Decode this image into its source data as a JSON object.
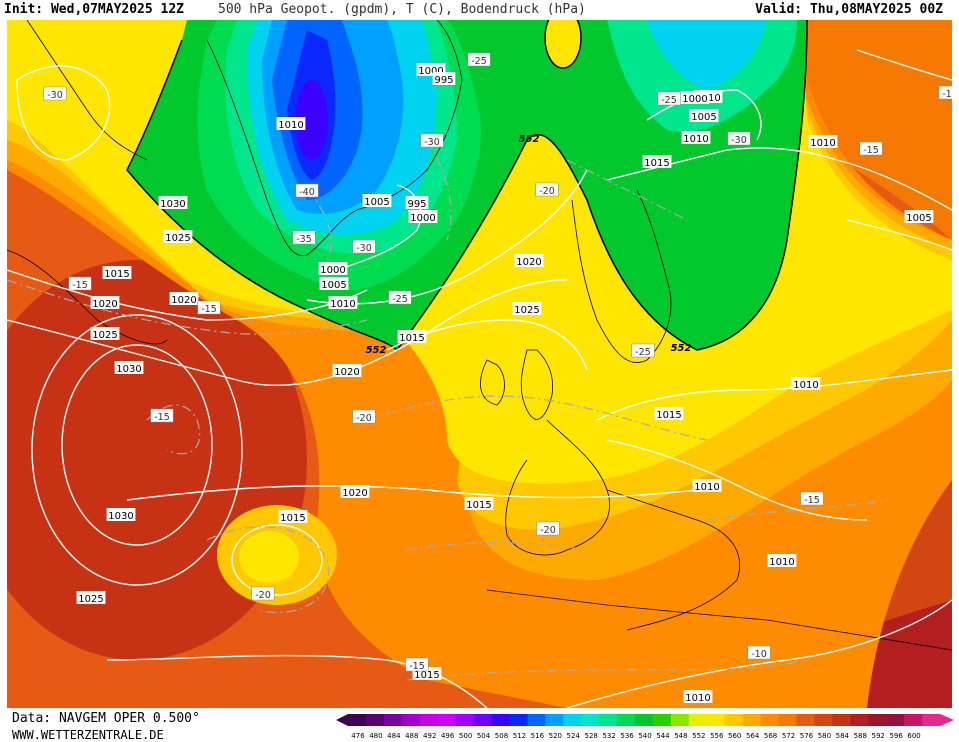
{
  "header": {
    "init": "Init: Wed,07MAY2025 12Z",
    "title": "500 hPa Geopot. (gpdm), T (C), Bodendruck (hPa)",
    "valid": "Valid: Thu,08MAY2025 00Z"
  },
  "footer": {
    "data_source": "Data: NAVGEM OPER 0.500°",
    "website": "WWW.WETTERZENTRALE.DE"
  },
  "colorbar": {
    "values": [
      "476",
      "480",
      "484",
      "488",
      "492",
      "496",
      "500",
      "504",
      "508",
      "512",
      "516",
      "520",
      "524",
      "528",
      "532",
      "536",
      "540",
      "544",
      "548",
      "552",
      "556",
      "560",
      "564",
      "568",
      "572",
      "576",
      "580",
      "584",
      "588",
      "592",
      "596",
      "600"
    ],
    "colors": [
      "#3c0050",
      "#5a0078",
      "#7a00a0",
      "#a000c8",
      "#c800e6",
      "#d200ff",
      "#a000ff",
      "#6e00ff",
      "#3c00ff",
      "#0a28ff",
      "#0064ff",
      "#00a0ff",
      "#00d2f0",
      "#00e6c8",
      "#00e68c",
      "#00dc50",
      "#00c82d",
      "#28d200",
      "#8ce600",
      "#e6f000",
      "#ffe600",
      "#ffc800",
      "#ffaa00",
      "#ff8c00",
      "#f57800",
      "#e65a14",
      "#d24614",
      "#c83214",
      "#b41e1e",
      "#a01428",
      "#96143c",
      "#c81464",
      "#e6288c"
    ]
  },
  "map": {
    "pressure_labels": [
      {
        "v": "1010"
      },
      {
        "v": "1000"
      },
      {
        "v": "995"
      },
      {
        "v": "1010"
      },
      {
        "v": "1000"
      },
      {
        "v": "1005"
      },
      {
        "v": "1010"
      },
      {
        "v": "1030"
      },
      {
        "v": "1025"
      },
      {
        "v": "1015"
      },
      {
        "v": "1005"
      },
      {
        "v": "1000"
      },
      {
        "v": "995"
      },
      {
        "v": "1015"
      },
      {
        "v": "1010"
      },
      {
        "v": "1005"
      },
      {
        "v": "1020"
      },
      {
        "v": "1020"
      },
      {
        "v": "1000"
      },
      {
        "v": "1005"
      },
      {
        "v": "1010"
      },
      {
        "v": "1025"
      },
      {
        "v": "1015"
      },
      {
        "v": "1020"
      },
      {
        "v": "1025"
      },
      {
        "v": "1030"
      },
      {
        "v": "1020"
      },
      {
        "v": "1010"
      },
      {
        "v": "1015"
      },
      {
        "v": "1020"
      },
      {
        "v": "1010"
      },
      {
        "v": "1015"
      },
      {
        "v": "1030"
      },
      {
        "v": "1015"
      },
      {
        "v": "1025"
      },
      {
        "v": "1010"
      },
      {
        "v": "1015"
      },
      {
        "v": "1010"
      }
    ],
    "temperature_labels": [
      {
        "v": "-30"
      },
      {
        "v": "-25"
      },
      {
        "v": "-25"
      },
      {
        "v": "-30"
      },
      {
        "v": "-30"
      },
      {
        "v": "-15"
      },
      {
        "v": "-1"
      },
      {
        "v": "-40"
      },
      {
        "v": "-35"
      },
      {
        "v": "-30"
      },
      {
        "v": "-20"
      },
      {
        "v": "-15"
      },
      {
        "v": "-15"
      },
      {
        "v": "-25"
      },
      {
        "v": "-25"
      },
      {
        "v": "-20"
      },
      {
        "v": "-15"
      },
      {
        "v": "-15"
      },
      {
        "v": "-20"
      },
      {
        "v": "-20"
      },
      {
        "v": "-15"
      },
      {
        "v": "-10"
      }
    ],
    "height_labels": [
      {
        "v": "552"
      },
      {
        "v": "552"
      },
      {
        "v": "552"
      }
    ]
  }
}
